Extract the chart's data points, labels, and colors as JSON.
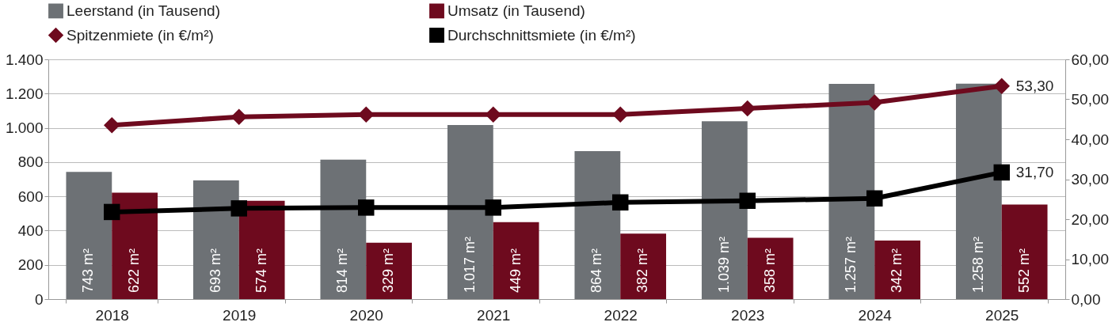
{
  "chart_data": {
    "type": "bar",
    "categories": [
      "2018",
      "2019",
      "2020",
      "2021",
      "2022",
      "2023",
      "2024",
      "2025"
    ],
    "series": [
      {
        "name": "Leerstand (in Tausend)",
        "color": "#6d7175",
        "values": [
          743,
          693,
          814,
          1017,
          864,
          1039,
          1257,
          1258
        ],
        "value_labels": [
          "743 m²",
          "693 m²",
          "814 m²",
          "1.017 m²",
          "864 m²",
          "1.039 m²",
          "1.257 m²",
          "1.258 m²"
        ]
      },
      {
        "name": "Umsatz (in Tausend)",
        "color": "#6e0a1e",
        "values": [
          622,
          574,
          329,
          449,
          382,
          358,
          342,
          552
        ],
        "value_labels": [
          "622 m²",
          "574 m²",
          "329 m²",
          "449 m²",
          "382 m²",
          "358 m²",
          "342 m²",
          "552 m²"
        ]
      },
      {
        "name": "Spitzenmiete (in €/m²)",
        "type": "line",
        "axis": "y2",
        "marker": "diamond",
        "color": "#6e0a1e",
        "values": [
          43.5,
          45.6,
          46.2,
          46.2,
          46.2,
          47.7,
          49.2,
          53.3
        ],
        "value_labels": [
          null,
          null,
          null,
          null,
          null,
          null,
          null,
          "53,30"
        ]
      },
      {
        "name": "Durchschnittsmiete (in €/m²)",
        "type": "line",
        "axis": "y2",
        "marker": "square",
        "color": "#000000",
        "values": [
          21.8,
          22.7,
          22.9,
          22.9,
          24.2,
          24.6,
          25.2,
          31.7
        ],
        "value_labels": [
          null,
          null,
          null,
          null,
          null,
          null,
          null,
          "31,70"
        ]
      }
    ],
    "ylim": [
      0,
      1400
    ],
    "yticks": [
      0,
      {
        "value": 200,
        "label": "200"
      },
      {
        "value": 400,
        "label": "400"
      },
      {
        "value": 600,
        "label": "600"
      },
      {
        "value": 800,
        "label": "800"
      },
      {
        "value": 1000,
        "label": "1.000"
      },
      {
        "value": 1200,
        "label": "1.200"
      },
      {
        "value": 1400,
        "label": "1.400"
      }
    ],
    "y2lim": [
      0,
      60
    ],
    "y2ticks": [
      {
        "value": 0,
        "label": "0,00"
      },
      {
        "value": 10,
        "label": "10,00"
      },
      {
        "value": 20,
        "label": "20,00"
      },
      {
        "value": 30,
        "label": "30,00"
      },
      {
        "value": 40,
        "label": "40,00"
      },
      {
        "value": 50,
        "label": "50,00"
      },
      {
        "value": 60,
        "label": "60,00"
      }
    ],
    "grid": "y",
    "legend": "top"
  }
}
